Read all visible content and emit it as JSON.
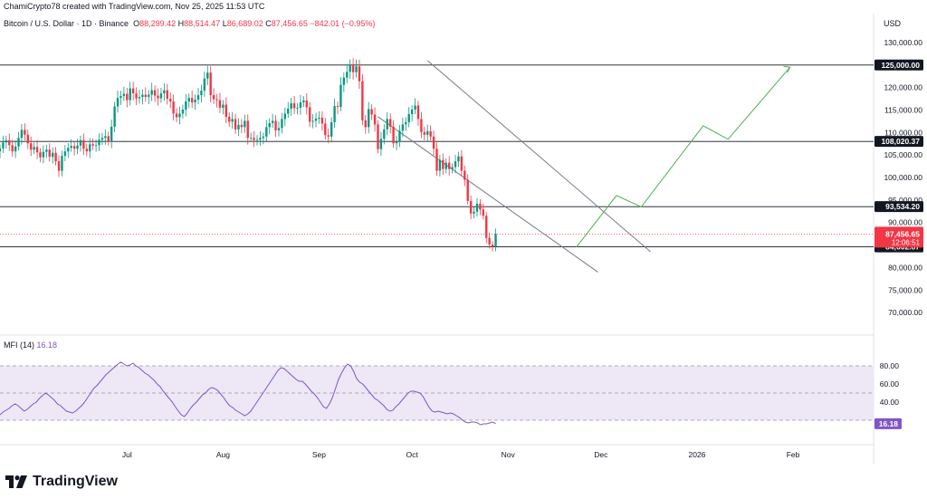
{
  "header": {
    "attribution": "ChamiCrypto78 created with TradingView.com, Nov 25, 2025 11:53 UTC",
    "symbol": "Bitcoin / U.S. Dollar · 1D · Binance",
    "open_label": "O",
    "open": "88,299.42",
    "high_label": "H",
    "high": "88,514.47",
    "low_label": "L",
    "low": "86,689.02",
    "close_label": "C",
    "close": "87,456.65",
    "change": "−842.01 (−0.95%)"
  },
  "price_axis": {
    "currency": "USD"
  },
  "brand": {
    "name": "TradingView"
  },
  "colors": {
    "up": "#089981",
    "down": "#f23645",
    "mfi": "#7e57c2",
    "mfi_band": "#ede7f6",
    "projection": "#4caf50",
    "level_line": "#131722",
    "channel": "#787b86"
  },
  "chart_data": [
    {
      "type": "candlestick",
      "title": "Bitcoin / U.S. Dollar · 1D · Binance",
      "ylabel": "USD",
      "ylim": [
        65000,
        132000
      ],
      "y_ticks": [
        {
          "value": 130000,
          "label": "130,000.00"
        },
        {
          "value": 125000,
          "label": "125,000.00"
        },
        {
          "value": 120000,
          "label": "120,000.00"
        },
        {
          "value": 115000,
          "label": "115,000.00"
        },
        {
          "value": 110000,
          "label": "110,000.00"
        },
        {
          "value": 105000,
          "label": "105,000.00"
        },
        {
          "value": 100000,
          "label": "100,000.00"
        },
        {
          "value": 95000,
          "label": "95,000.00"
        },
        {
          "value": 90000,
          "label": "90,000.00"
        },
        {
          "value": 85000,
          "label": "85,000.00"
        },
        {
          "value": 80000,
          "label": "80,000.00"
        },
        {
          "value": 75000,
          "label": "75,000.00"
        },
        {
          "value": 70000,
          "label": "70,000.00"
        }
      ],
      "x_ticks": [
        "Jul",
        "Aug",
        "Sep",
        "Oct",
        "Nov",
        "Dec",
        "2026",
        "Feb"
      ],
      "x_tick_dates": [
        "2025-07-01",
        "2025-08-01",
        "2025-09-01",
        "2025-10-01",
        "2025-11-01",
        "2025-12-01",
        "2026-01-01",
        "2026-02-01"
      ],
      "x_range": [
        "2025-05-21",
        "2026-02-27"
      ],
      "grid": true,
      "horizontal_levels": [
        {
          "value": 125000.0,
          "label": "125,000.00"
        },
        {
          "value": 108020.37,
          "label": "108,020.37"
        },
        {
          "value": 93534.2,
          "label": "93,534.20"
        },
        {
          "value": 84602.87,
          "label": "84,602.87"
        }
      ],
      "current_price": {
        "value": 87456.65,
        "label": "87,456.65",
        "countdown": "12:06:51"
      },
      "channel": [
        {
          "from": {
            "date": "2025-10-06",
            "price": 126000
          },
          "to": {
            "date": "2025-12-17",
            "price": 83500
          }
        },
        {
          "from": {
            "date": "2025-09-20",
            "price": 113500
          },
          "to": {
            "date": "2025-11-30",
            "price": 79000
          }
        }
      ],
      "projection": [
        {
          "date": "2025-11-23",
          "price": 84500
        },
        {
          "date": "2025-12-06",
          "price": 96000
        },
        {
          "date": "2025-12-14",
          "price": 93500
        },
        {
          "date": "2026-01-03",
          "price": 111500
        },
        {
          "date": "2026-01-11",
          "price": 108500
        },
        {
          "date": "2026-01-31",
          "price": 124500
        }
      ],
      "series": [
        {
          "start_date": "2025-05-21",
          "close": [
            106500,
            107800,
            108300,
            107200,
            105800,
            106900,
            108800,
            110600,
            109500,
            107600,
            106200,
            106800,
            105600,
            104500,
            105700,
            106200,
            104600,
            105500,
            103600,
            101500,
            104800,
            105800,
            106600,
            107000,
            106400,
            107100,
            108300,
            106400,
            105800,
            107400,
            107100,
            107200,
            108400,
            108800,
            109200,
            108000,
            111300,
            115800,
            117700,
            118100,
            118600,
            117200,
            119800,
            118700,
            117600,
            117900,
            118400,
            117900,
            118400,
            119400,
            118200,
            117600,
            118700,
            119400,
            117500,
            116900,
            114200,
            113400,
            114200,
            115100,
            116900,
            117700,
            116700,
            117300,
            118300,
            119300,
            122000,
            123300,
            118300,
            117400,
            117200,
            115500,
            116200,
            113500,
            112400,
            113000,
            110700,
            111700,
            111200,
            112600,
            108800,
            108800,
            108300,
            108400,
            108800,
            109100,
            111200,
            112100,
            112600,
            110500,
            111000,
            113000,
            114200,
            115300,
            116500,
            115400,
            115500,
            116700,
            117100,
            115600,
            112400,
            112600,
            113100,
            113300,
            112000,
            109400,
            109100,
            112300,
            115900,
            115700,
            120600,
            122200,
            123500,
            124900,
            123400,
            124700,
            121400,
            112700,
            111200,
            115200,
            114000,
            111800,
            106300,
            108600,
            110700,
            113000,
            111300,
            107600,
            107900,
            110400,
            111800,
            112300,
            114100,
            115100,
            116000,
            113000,
            110100,
            109500,
            110300,
            109100,
            106400,
            101500,
            103900,
            101900,
            103300,
            101900,
            102300,
            103600,
            104700,
            101500,
            99500,
            94800,
            92000,
            92400,
            94200,
            92900,
            91500,
            86600,
            85100,
            84700,
            87460
          ],
          "open_first": 105800
        }
      ]
    },
    {
      "type": "line",
      "name": "MFI (14)",
      "last_value": "16.18",
      "ylim": [
        0,
        100
      ],
      "band": [
        20,
        80
      ],
      "y_ticks": [
        {
          "value": 80,
          "label": "80.00"
        },
        {
          "value": 60,
          "label": "60.00"
        },
        {
          "value": 40,
          "label": "40.00"
        }
      ],
      "values": [
        26,
        29,
        31,
        33,
        36,
        38,
        36,
        33,
        30,
        32,
        35,
        38,
        40,
        44,
        47,
        50,
        48,
        45,
        42,
        38,
        36,
        33,
        30,
        29,
        28,
        30,
        33,
        36,
        40,
        45,
        50,
        55,
        58,
        62,
        66,
        70,
        73,
        76,
        79,
        82,
        84,
        82,
        80,
        81,
        83,
        80,
        78,
        75,
        72,
        70,
        67,
        64,
        60,
        57,
        52,
        48,
        44,
        40,
        35,
        30,
        26,
        24,
        28,
        33,
        37,
        40,
        44,
        48,
        50,
        54,
        56,
        55,
        53,
        49,
        45,
        40,
        36,
        34,
        31,
        29,
        27,
        25,
        27,
        30,
        35,
        40,
        45,
        50,
        55,
        60,
        65,
        70,
        75,
        78,
        77,
        74,
        71,
        68,
        65,
        63,
        63,
        60,
        56,
        52,
        49,
        45,
        40,
        35,
        33,
        38,
        45,
        55,
        65,
        72,
        78,
        82,
        80,
        74,
        66,
        62,
        60,
        56,
        52,
        48,
        44,
        42,
        39,
        36,
        32,
        30,
        31,
        35,
        38,
        42,
        46,
        50,
        52,
        52,
        51,
        50,
        46,
        40,
        34,
        30,
        29,
        30,
        29,
        28,
        27,
        28,
        27,
        25,
        23,
        20,
        18,
        17,
        18,
        18,
        17,
        15,
        16,
        16,
        17,
        18,
        16.18
      ]
    }
  ]
}
